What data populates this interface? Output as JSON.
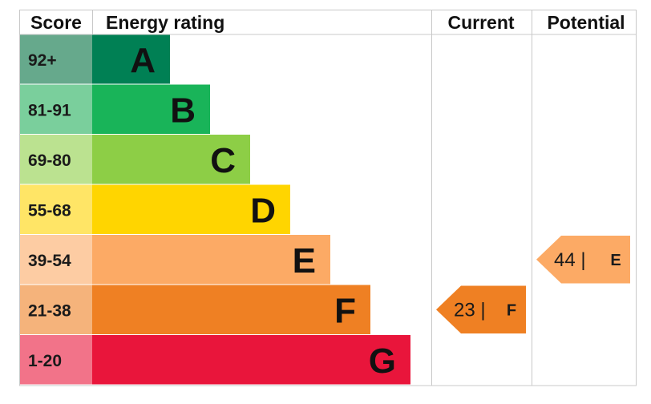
{
  "chart_data": {
    "type": "bar",
    "headers": {
      "score": "Score",
      "rating": "Energy rating",
      "current": "Current",
      "potential": "Potential"
    },
    "bands": [
      {
        "letter": "A",
        "range": "92+",
        "color": "#008054",
        "score_color": "#66a98c"
      },
      {
        "letter": "B",
        "range": "81-91",
        "color": "#19b459",
        "score_color": "#7acf9c"
      },
      {
        "letter": "C",
        "range": "69-80",
        "color": "#8dce46",
        "score_color": "#bbe290"
      },
      {
        "letter": "D",
        "range": "55-68",
        "color": "#ffd500",
        "score_color": "#ffe566"
      },
      {
        "letter": "E",
        "range": "39-54",
        "color": "#fcaa65",
        "score_color": "#fdcca3"
      },
      {
        "letter": "F",
        "range": "21-38",
        "color": "#ef8023",
        "score_color": "#f5b37b"
      },
      {
        "letter": "G",
        "range": "1-20",
        "color": "#e9153b",
        "score_color": "#f27389"
      }
    ],
    "current": {
      "value": 23,
      "band": "F",
      "color": "#ef8023"
    },
    "potential": {
      "value": 44,
      "band": "E",
      "color": "#fcaa65"
    }
  }
}
